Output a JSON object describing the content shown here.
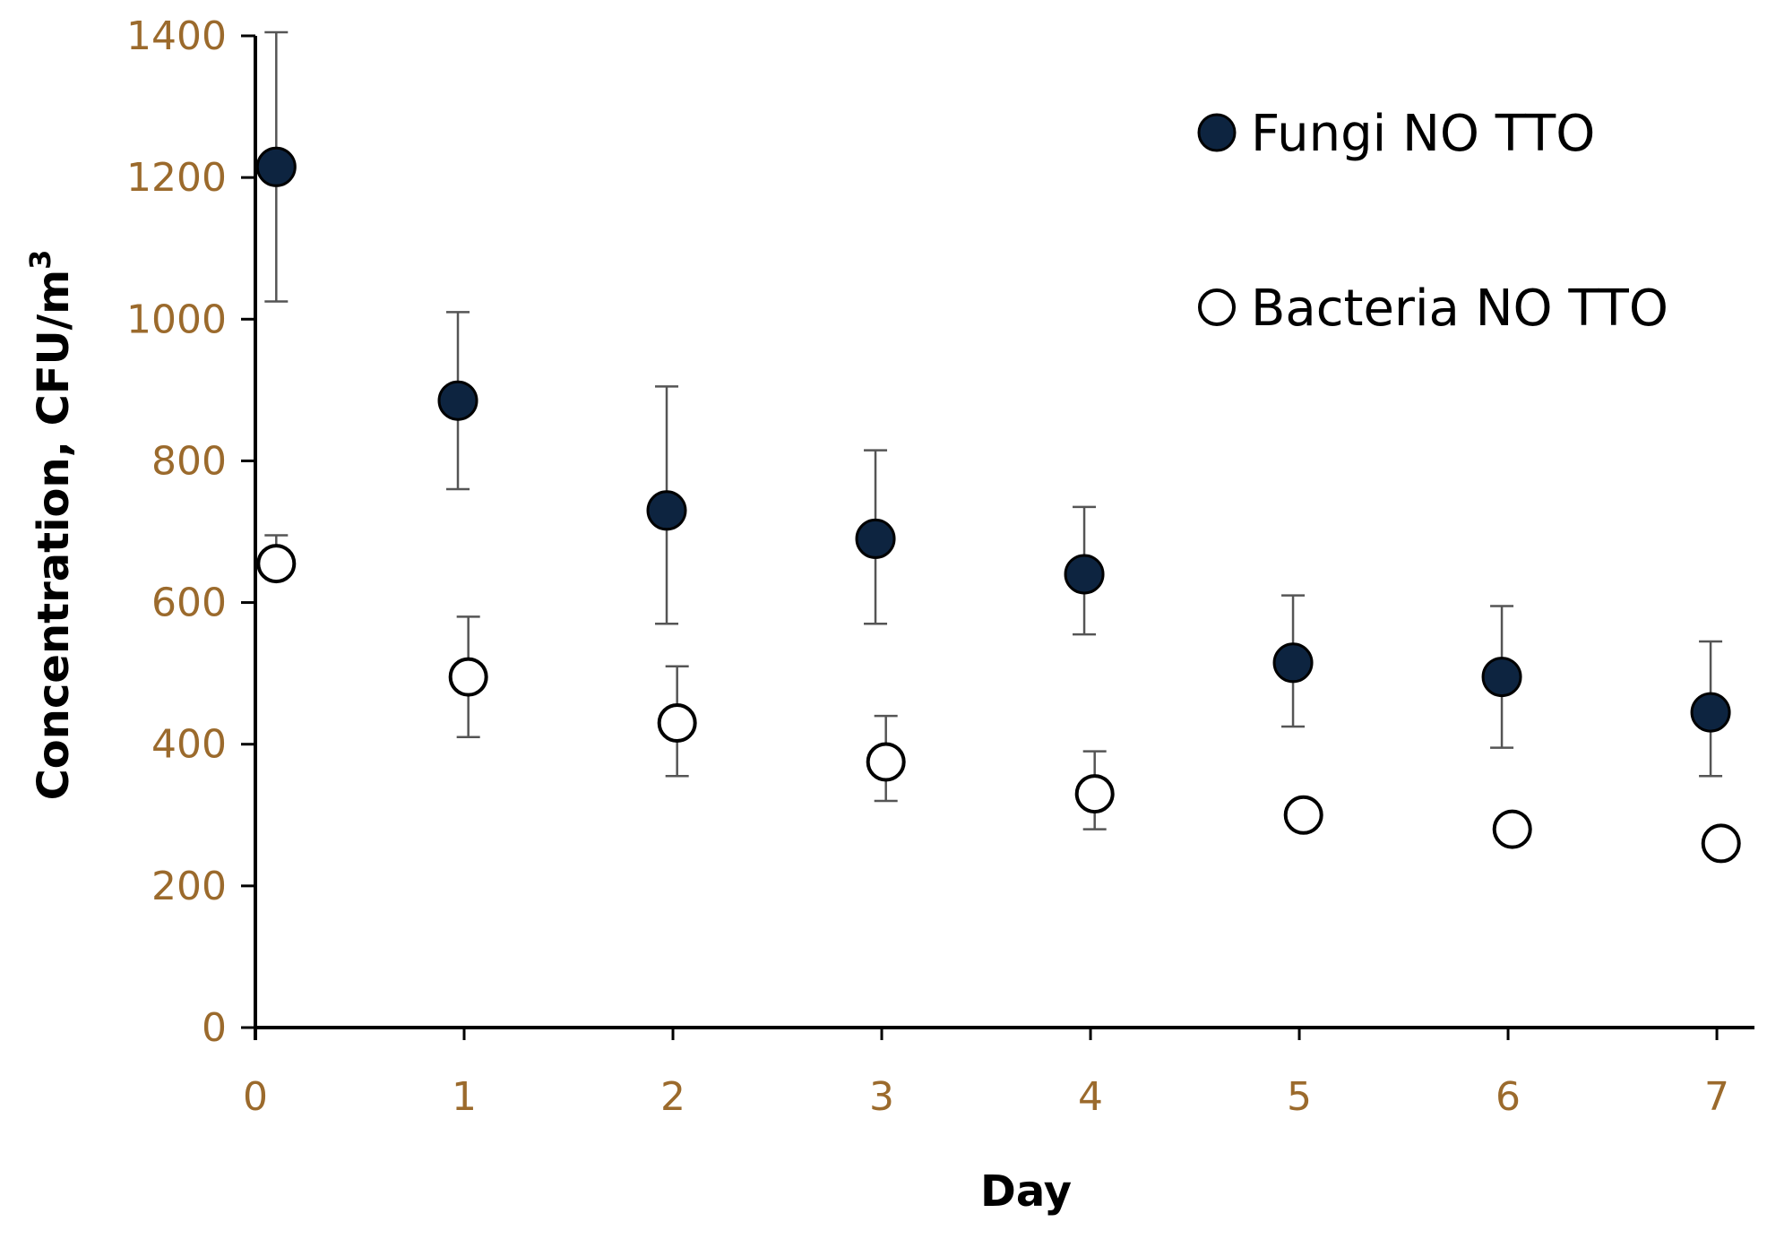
{
  "chart_data": {
    "type": "scatter",
    "title": "",
    "xlabel": "Day",
    "ylabel": "Concentration, CFU/m",
    "ylabel_superscript": "3",
    "xlim": [
      0,
      7.18
    ],
    "ylim": [
      0,
      1400
    ],
    "xticks": [
      0,
      1,
      2,
      3,
      4,
      5,
      6,
      7
    ],
    "yticks": [
      0,
      200,
      400,
      600,
      800,
      1000,
      1200,
      1400
    ],
    "grid": false,
    "legend_position": "top-right",
    "series": [
      {
        "name": "Fungi NO TTO",
        "marker": "filled-circle",
        "color": "#0d2440",
        "x": [
          0.1,
          0.97,
          1.97,
          2.97,
          3.97,
          4.97,
          5.97,
          6.97
        ],
        "y": [
          1215,
          885,
          730,
          690,
          640,
          515,
          495,
          445
        ],
        "err_low": [
          1025,
          760,
          570,
          570,
          555,
          425,
          395,
          355
        ],
        "err_high": [
          1405,
          1010,
          905,
          815,
          735,
          610,
          595,
          545
        ]
      },
      {
        "name": "Bacteria NO TTO",
        "marker": "open-circle",
        "color": "#000000",
        "x": [
          0.1,
          1.02,
          2.02,
          3.02,
          4.02,
          5.02,
          6.02,
          7.02
        ],
        "y": [
          655,
          495,
          430,
          375,
          330,
          300,
          280,
          260
        ],
        "err_low": [
          null,
          410,
          355,
          320,
          280,
          null,
          null,
          null
        ],
        "err_high": [
          695,
          580,
          510,
          440,
          390,
          null,
          null,
          null
        ]
      }
    ]
  }
}
